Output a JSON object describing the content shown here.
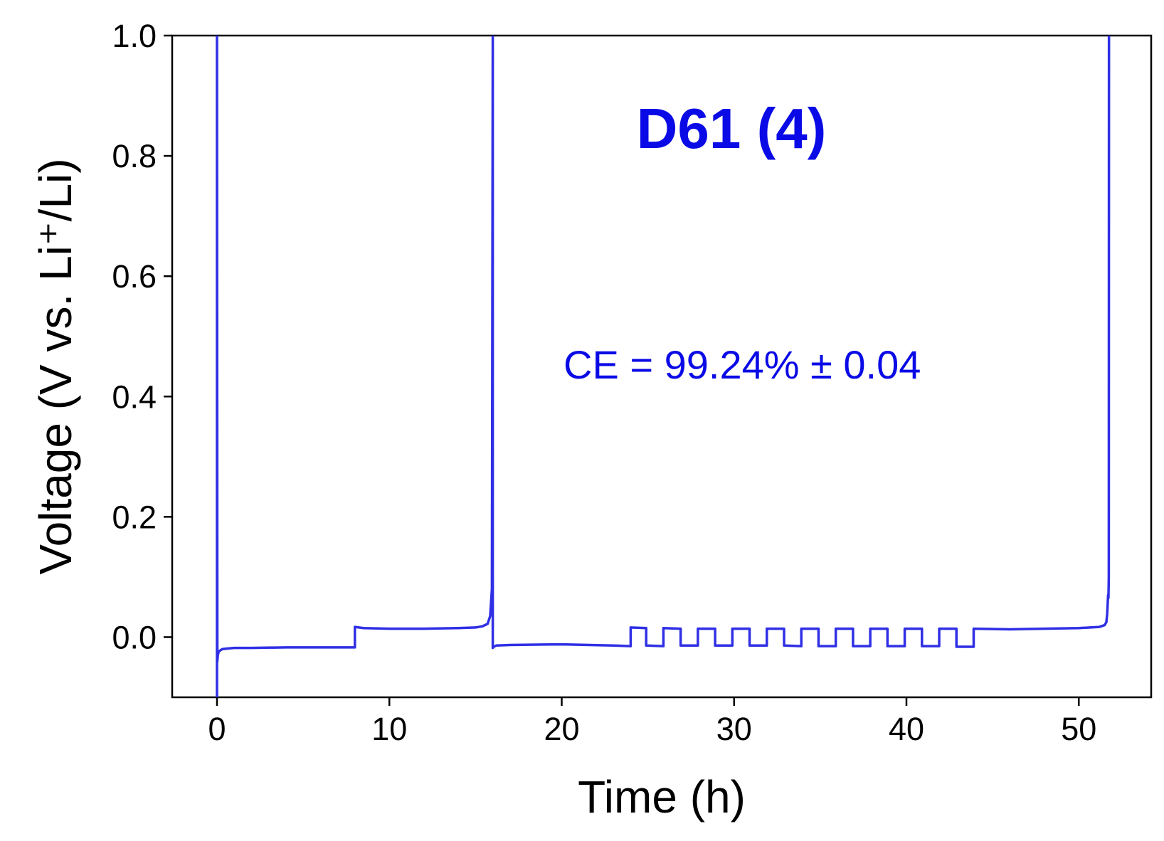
{
  "chart_data": {
    "type": "line",
    "title": "",
    "xlabel": "Time (h)",
    "ylabel": "Voltage (V vs. Li⁺/Li)",
    "xlim": [
      -2.6,
      54.2
    ],
    "ylim": [
      -0.1,
      1.0
    ],
    "xticks": [
      0,
      10,
      20,
      30,
      40,
      50
    ],
    "xtick_labels": [
      "0",
      "10",
      "20",
      "30",
      "40",
      "50"
    ],
    "yticks": [
      0.0,
      0.2,
      0.4,
      0.6,
      0.8,
      1.0
    ],
    "ytick_labels": [
      "0.0",
      "0.2",
      "0.4",
      "0.6",
      "0.8",
      "1.0"
    ],
    "grid": false,
    "annotations": [
      {
        "id": "sample",
        "text": "D61 (4)"
      },
      {
        "id": "ce",
        "text": "CE = 99.24% ± 0.04"
      }
    ],
    "series": [
      {
        "color": "#2f2fe6",
        "x": [
          0,
          0,
          0.02,
          0.05,
          0.1,
          0.3,
          0.6,
          1,
          2,
          4,
          6,
          8,
          8,
          8.5,
          10,
          12,
          14,
          15,
          15.4,
          15.7,
          15.85,
          15.95,
          16.0,
          16.0,
          16.05,
          16.2,
          17,
          20,
          23,
          24,
          24,
          24.9,
          24.9,
          25.9,
          25.9,
          26.9,
          26.9,
          27.9,
          27.9,
          28.9,
          28.9,
          29.9,
          29.9,
          30.9,
          30.9,
          31.9,
          31.9,
          32.9,
          32.9,
          33.9,
          33.9,
          34.9,
          34.9,
          35.9,
          35.9,
          36.9,
          36.9,
          37.9,
          37.9,
          38.9,
          38.9,
          39.9,
          39.9,
          40.9,
          40.9,
          41.9,
          41.9,
          42.9,
          42.9,
          43.9,
          43.9,
          46,
          50,
          51.2,
          51.5,
          51.6,
          51.65,
          51.7,
          51.72,
          51.74,
          51.75
        ],
        "y": [
          -0.1,
          1.0,
          -0.04,
          -0.03,
          -0.024,
          -0.02,
          -0.019,
          -0.018,
          -0.018,
          -0.017,
          -0.017,
          -0.017,
          0.017,
          0.015,
          0.014,
          0.014,
          0.015,
          0.016,
          0.018,
          0.022,
          0.035,
          0.08,
          1.0,
          -0.018,
          -0.016,
          -0.014,
          -0.013,
          -0.012,
          -0.014,
          -0.015,
          0.016,
          0.015,
          -0.014,
          -0.015,
          0.015,
          0.014,
          -0.014,
          -0.014,
          0.014,
          0.014,
          -0.014,
          -0.014,
          0.014,
          0.014,
          -0.014,
          -0.014,
          0.014,
          0.014,
          -0.014,
          -0.015,
          0.014,
          0.014,
          -0.015,
          -0.015,
          0.014,
          0.014,
          -0.015,
          -0.015,
          0.014,
          0.014,
          -0.015,
          -0.015,
          0.014,
          0.014,
          -0.015,
          -0.015,
          0.014,
          0.014,
          -0.016,
          -0.016,
          0.014,
          0.013,
          0.015,
          0.017,
          0.02,
          0.025,
          0.04,
          0.07,
          0.065,
          0.1,
          1.0
        ]
      }
    ]
  }
}
